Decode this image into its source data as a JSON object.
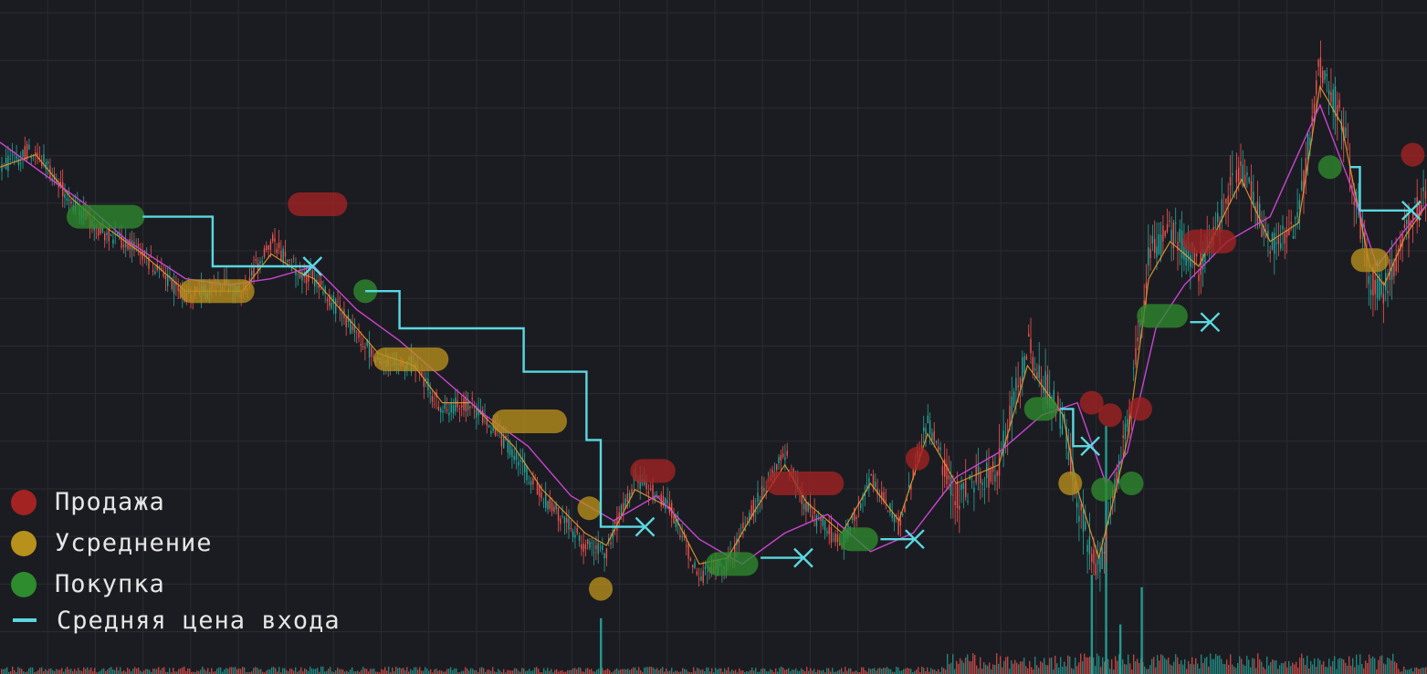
{
  "colors": {
    "background": "#1b1c21",
    "grid": "#2a2c33",
    "candle_up": "#26a69a",
    "candle_down": "#ef5350",
    "ma_fast": "#f0a030",
    "ma_slow": "#c845d0",
    "sell": "#a32323",
    "average": "#b8901c",
    "buy": "#2e8b2e",
    "entry": "#5ad8e0",
    "legend_text": "#e6e6e6"
  },
  "legend": [
    {
      "key": "sell",
      "label": "Продажа",
      "icon": "red-circle-icon"
    },
    {
      "key": "average",
      "label": "Усреднение",
      "icon": "yellow-circle-icon"
    },
    {
      "key": "buy",
      "label": "Покупка",
      "icon": "green-circle-icon"
    },
    {
      "key": "entry",
      "label": "Средняя цена входа",
      "icon": "cyan-dash-icon"
    }
  ],
  "chart_data": {
    "type": "line",
    "title": "",
    "xlabel": "",
    "ylabel": "",
    "xlim": [
      0,
      100
    ],
    "ylim": [
      0,
      100
    ],
    "grid": true,
    "legend_position": "bottom-left",
    "price": {
      "x": [
        0,
        2.5,
        5,
        7,
        10,
        13,
        15.5,
        17,
        19,
        21,
        22,
        25,
        26.5,
        29,
        31,
        33,
        36,
        38,
        41,
        42.5,
        44.5,
        47,
        49,
        51,
        53,
        55,
        56.5,
        59,
        61,
        63,
        65,
        67,
        70,
        72,
        74.5,
        75.5,
        77,
        78,
        79,
        80.5,
        82,
        84,
        87,
        89,
        91,
        92.5,
        94,
        96,
        97,
        98.5,
        100
      ],
      "y": [
        76,
        79,
        70,
        66,
        62,
        55,
        57,
        56,
        64,
        59,
        58,
        49,
        45,
        44,
        37,
        38,
        30,
        23,
        15,
        14,
        26,
        21,
        10,
        12,
        22,
        30,
        21,
        15,
        26,
        18,
        35,
        23,
        28,
        47,
        35,
        22,
        10,
        23,
        34,
        62,
        66,
        60,
        76,
        63,
        68,
        93,
        84,
        58,
        56,
        66,
        72
      ]
    },
    "ma_slow": {
      "x": [
        0,
        3,
        6,
        9,
        13,
        16,
        19,
        22,
        25,
        28,
        31,
        34,
        37,
        40,
        43,
        46,
        49,
        52,
        55,
        58,
        61,
        64,
        67,
        70,
        73,
        75.5,
        77.5,
        79,
        81,
        83,
        86,
        89,
        92.5,
        94.5,
        96.5,
        98.5,
        100
      ],
      "y": [
        80,
        75,
        70,
        64,
        58,
        57,
        58,
        60,
        53,
        48,
        42,
        36,
        31,
        23,
        19,
        23,
        16,
        12,
        17,
        20,
        14,
        17,
        26,
        30,
        36,
        38,
        25,
        30,
        50,
        57,
        64,
        68,
        86,
        74,
        60,
        66,
        70
      ]
    },
    "ma_fast": {
      "x": [
        0,
        2.5,
        5,
        7,
        10,
        13,
        15.5,
        17,
        19,
        21,
        22,
        25,
        26.5,
        29,
        31,
        33,
        36,
        38,
        41,
        42.5,
        44.5,
        47,
        49,
        51,
        53,
        55,
        56.5,
        59,
        61,
        63,
        65,
        67,
        70,
        72,
        74.5,
        75.5,
        77,
        78,
        79,
        80.5,
        82,
        84,
        87,
        89,
        91,
        92.5,
        94,
        96,
        97,
        98.5,
        100
      ],
      "y": [
        76,
        78,
        71,
        67,
        62,
        56,
        56,
        56,
        62,
        59,
        58,
        50,
        46,
        44,
        38,
        38,
        31,
        24,
        17,
        15,
        24,
        21,
        12,
        13,
        21,
        28,
        22,
        17,
        25,
        19,
        33,
        25,
        28,
        44,
        36,
        24,
        13,
        22,
        32,
        58,
        64,
        60,
        74,
        64,
        67,
        89,
        83,
        60,
        57,
        65,
        70
      ]
    },
    "volume_spikes": [
      {
        "x": 42.1,
        "v": 9
      },
      {
        "x": 76.5,
        "v": 16
      },
      {
        "x": 77.5,
        "v": 40
      },
      {
        "x": 78.5,
        "v": 8
      },
      {
        "x": 80,
        "v": 14
      }
    ],
    "events": {
      "sell": [
        {
          "x1": 21,
          "x2": 23.5,
          "y": 70
        },
        {
          "x1": 45,
          "x2": 46.5,
          "y": 27
        },
        {
          "x1": 54.5,
          "x2": 58.3,
          "y": 25
        },
        {
          "x1": 64.3,
          "x2": 64.3,
          "y": 29
        },
        {
          "x1": 76.5,
          "x2": 76.5,
          "y": 38
        },
        {
          "x1": 77.8,
          "x2": 77.8,
          "y": 36
        },
        {
          "x1": 79.9,
          "x2": 79.9,
          "y": 37
        },
        {
          "x1": 83.7,
          "x2": 85.8,
          "y": 64
        },
        {
          "x1": 99,
          "x2": 99,
          "y": 78
        }
      ],
      "average": [
        {
          "x1": 13.4,
          "x2": 17,
          "y": 56
        },
        {
          "x1": 27,
          "x2": 30.6,
          "y": 45
        },
        {
          "x1": 35.3,
          "x2": 38.9,
          "y": 35
        },
        {
          "x1": 41.3,
          "x2": 41.3,
          "y": 21
        },
        {
          "x1": 42.1,
          "x2": 42.1,
          "y": 8
        },
        {
          "x1": 75,
          "x2": 75,
          "y": 25
        },
        {
          "x1": 95.5,
          "x2": 96.5,
          "y": 61
        }
      ],
      "buy": [
        {
          "x1": 5.5,
          "x2": 9.3,
          "y": 68
        },
        {
          "x1": 25.6,
          "x2": 25.6,
          "y": 56
        },
        {
          "x1": 50.3,
          "x2": 52.3,
          "y": 12
        },
        {
          "x1": 59.6,
          "x2": 60.7,
          "y": 16
        },
        {
          "x1": 72.6,
          "x2": 73.3,
          "y": 37
        },
        {
          "x1": 77.3,
          "x2": 77.3,
          "y": 24
        },
        {
          "x1": 79.3,
          "x2": 79.3,
          "y": 25
        },
        {
          "x1": 80.5,
          "x2": 82.4,
          "y": 52
        },
        {
          "x1": 93.2,
          "x2": 93.2,
          "y": 76
        }
      ]
    },
    "entry_paths": [
      {
        "x": [
          10,
          14.9,
          14.9,
          21.9
        ],
        "y": [
          68,
          68,
          60,
          60
        ]
      },
      {
        "x": [
          25.6,
          28,
          28,
          36.7,
          36.7,
          41.1,
          41.1,
          42.1,
          42.1,
          45.2
        ],
        "y": [
          56,
          56,
          50,
          50,
          43,
          43,
          32,
          32,
          18,
          18
        ]
      },
      {
        "x": [
          53.3,
          56.3
        ],
        "y": [
          13,
          13
        ]
      },
      {
        "x": [
          61.7,
          64.1
        ],
        "y": [
          16,
          16
        ]
      },
      {
        "x": [
          74.3,
          75.2,
          75.2,
          76.4
        ],
        "y": [
          37,
          37,
          31,
          31
        ]
      },
      {
        "x": [
          83.4,
          84.8
        ],
        "y": [
          51,
          51
        ]
      },
      {
        "x": [
          94.6,
          95.3,
          95.3,
          98.9
        ],
        "y": [
          76,
          76,
          69,
          69
        ]
      }
    ],
    "close_markers": [
      {
        "x": 21.9,
        "y": 60
      },
      {
        "x": 45.2,
        "y": 18
      },
      {
        "x": 56.3,
        "y": 13
      },
      {
        "x": 64.1,
        "y": 16
      },
      {
        "x": 76.4,
        "y": 31
      },
      {
        "x": 84.8,
        "y": 51
      },
      {
        "x": 98.9,
        "y": 69
      }
    ]
  }
}
